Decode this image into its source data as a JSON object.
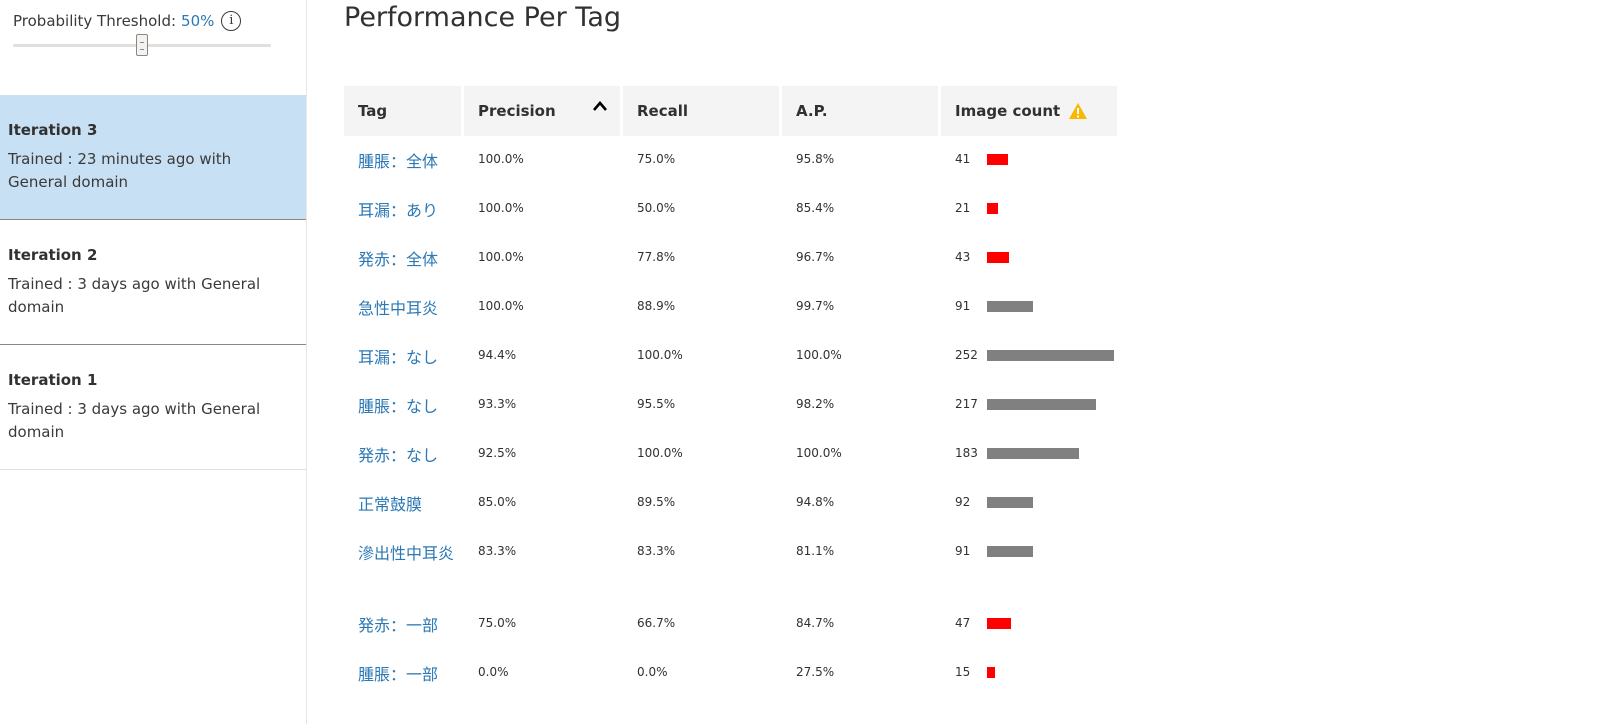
{
  "threshold": {
    "label": "Probability Threshold:",
    "value": "50%",
    "fraction": 0.5,
    "info_glyph": "i"
  },
  "iterations": [
    {
      "name": "Iteration 3",
      "desc": "Trained : 23 minutes ago with General domain",
      "selected": true
    },
    {
      "name": "Iteration 2",
      "desc": "Trained : 3 days ago with General domain",
      "selected": false
    },
    {
      "name": "Iteration 1",
      "desc": "Trained : 3 days ago with General domain",
      "selected": false
    }
  ],
  "main": {
    "title": "Performance Per Tag"
  },
  "table": {
    "headers": {
      "tag": "Tag",
      "precision": "Precision",
      "recall": "Recall",
      "ap": "A.P.",
      "count": "Image count"
    },
    "warning_threshold_note": "warning-icon",
    "colors": {
      "low": "#ff0000",
      "ok": "#808080",
      "link": "#2b78b5",
      "selected_bg": "#c7e0f4"
    },
    "rows": [
      {
        "tag": "腫脹：全体",
        "precision": "100.0%",
        "recall": "75.0%",
        "ap": "95.8%",
        "count": "41",
        "low": true
      },
      {
        "tag": "耳漏：あり",
        "precision": "100.0%",
        "recall": "50.0%",
        "ap": "85.4%",
        "count": "21",
        "low": true
      },
      {
        "tag": "発赤：全体",
        "precision": "100.0%",
        "recall": "77.8%",
        "ap": "96.7%",
        "count": "43",
        "low": true
      },
      {
        "tag": "急性中耳炎",
        "precision": "100.0%",
        "recall": "88.9%",
        "ap": "99.7%",
        "count": "91",
        "low": false
      },
      {
        "tag": "耳漏：なし",
        "precision": "94.4%",
        "recall": "100.0%",
        "ap": "100.0%",
        "count": "252",
        "low": false
      },
      {
        "tag": "腫脹：なし",
        "precision": "93.3%",
        "recall": "95.5%",
        "ap": "98.2%",
        "count": "217",
        "low": false
      },
      {
        "tag": "発赤：なし",
        "precision": "92.5%",
        "recall": "100.0%",
        "ap": "100.0%",
        "count": "183",
        "low": false
      },
      {
        "tag": "正常鼓膜",
        "precision": "85.0%",
        "recall": "89.5%",
        "ap": "94.8%",
        "count": "92",
        "low": false
      },
      {
        "tag": "滲出性中耳炎",
        "precision": "83.3%",
        "recall": "83.3%",
        "ap": "81.1%",
        "count": "91",
        "low": false
      },
      {
        "tag": "発赤：一部",
        "precision": "75.0%",
        "recall": "66.7%",
        "ap": "84.7%",
        "count": "47",
        "low": true
      },
      {
        "tag": "腫脹：一部",
        "precision": "0.0%",
        "recall": "0.0%",
        "ap": "27.5%",
        "count": "15",
        "low": true
      }
    ]
  }
}
